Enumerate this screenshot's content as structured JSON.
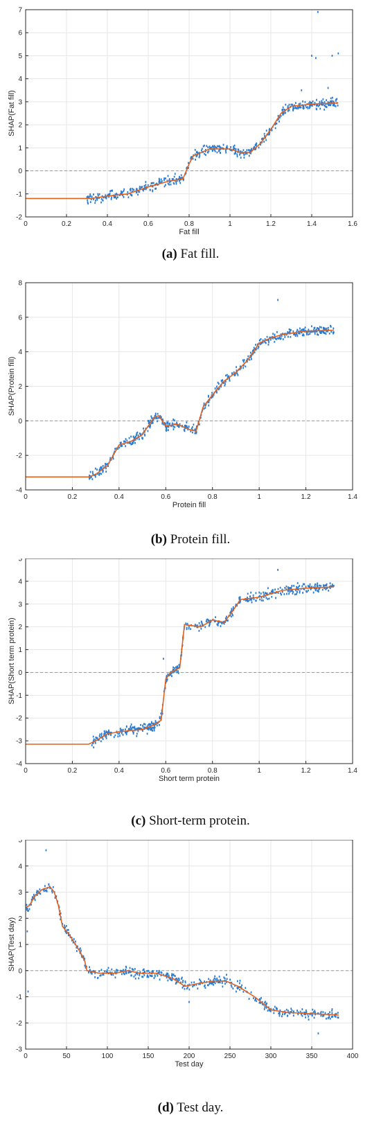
{
  "colors": {
    "scatter": "#2a7bd0",
    "line": "#e0601c",
    "grid": "#e6e6e6",
    "zero_line": "#9a9a9a",
    "axis": "#262626"
  },
  "chart_data": [
    {
      "type": "scatter",
      "caption_letter": "(a)",
      "caption_text": " Fat fill.",
      "xlabel": "Fat fill",
      "ylabel": "SHAP(Fat fill)",
      "xlim": [
        0,
        1.6
      ],
      "ylim": [
        -2,
        7
      ],
      "xticks": [
        0,
        0.2,
        0.4,
        0.6,
        0.8,
        1,
        1.2,
        1.4,
        1.6
      ],
      "yticks": [
        -2,
        -1,
        0,
        1,
        2,
        3,
        4,
        5,
        6,
        7
      ],
      "grid": true,
      "zero_line": 0,
      "scatter_range": [
        0.3,
        1.53
      ],
      "trend": [
        [
          0,
          -1.2
        ],
        [
          0.32,
          -1.2
        ],
        [
          0.4,
          -1.1
        ],
        [
          0.5,
          -1.0
        ],
        [
          0.6,
          -0.7
        ],
        [
          0.7,
          -0.45
        ],
        [
          0.77,
          -0.35
        ],
        [
          0.8,
          0.3
        ],
        [
          0.82,
          0.65
        ],
        [
          0.9,
          0.95
        ],
        [
          1.0,
          0.95
        ],
        [
          1.05,
          0.8
        ],
        [
          1.1,
          0.8
        ],
        [
          1.15,
          1.2
        ],
        [
          1.2,
          1.8
        ],
        [
          1.25,
          2.5
        ],
        [
          1.3,
          2.8
        ],
        [
          1.4,
          2.9
        ],
        [
          1.53,
          2.95
        ]
      ],
      "outliers": [
        [
          1.43,
          6.9
        ],
        [
          1.4,
          5.0
        ],
        [
          1.42,
          4.9
        ],
        [
          1.5,
          5.0
        ],
        [
          1.53,
          5.1
        ],
        [
          1.48,
          3.6
        ],
        [
          1.35,
          3.5
        ]
      ]
    },
    {
      "type": "scatter",
      "caption_letter": "(b)",
      "caption_text": " Protein fill.",
      "xlabel": "Protein fill",
      "ylabel": "SHAP(Protein fill)",
      "xlim": [
        0,
        1.4
      ],
      "ylim": [
        -4,
        8
      ],
      "xticks": [
        0,
        0.2,
        0.4,
        0.6,
        0.8,
        1,
        1.2,
        1.4
      ],
      "yticks": [
        -4,
        -2,
        0,
        2,
        4,
        6,
        8
      ],
      "grid": true,
      "zero_line": 0,
      "scatter_range": [
        0.27,
        1.32
      ],
      "trend": [
        [
          0,
          -3.25
        ],
        [
          0.27,
          -3.25
        ],
        [
          0.3,
          -3.1
        ],
        [
          0.35,
          -2.6
        ],
        [
          0.4,
          -1.4
        ],
        [
          0.45,
          -1.2
        ],
        [
          0.5,
          -0.8
        ],
        [
          0.55,
          0.2
        ],
        [
          0.57,
          0.3
        ],
        [
          0.6,
          -0.3
        ],
        [
          0.65,
          -0.2
        ],
        [
          0.7,
          -0.5
        ],
        [
          0.73,
          -0.6
        ],
        [
          0.76,
          0.8
        ],
        [
          0.8,
          1.5
        ],
        [
          0.85,
          2.3
        ],
        [
          0.9,
          2.8
        ],
        [
          0.95,
          3.5
        ],
        [
          1.0,
          4.5
        ],
        [
          1.05,
          4.8
        ],
        [
          1.1,
          5.0
        ],
        [
          1.2,
          5.2
        ],
        [
          1.32,
          5.25
        ]
      ],
      "outliers": [
        [
          1.08,
          7.0
        ]
      ]
    },
    {
      "type": "scatter",
      "caption_letter": "(c)",
      "caption_text": " Short-term protein.",
      "xlabel": "Short term protein",
      "ylabel": "SHAP(Short term protein)",
      "xlim": [
        0,
        1.4
      ],
      "ylim": [
        -4,
        5
      ],
      "xticks": [
        0,
        0.2,
        0.4,
        0.6,
        0.8,
        1,
        1.2,
        1.4
      ],
      "yticks": [
        -4,
        -3,
        -2,
        -1,
        0,
        1,
        2,
        3,
        4,
        5
      ],
      "grid": true,
      "zero_line": 0,
      "scatter_range": [
        0.28,
        1.32
      ],
      "trend": [
        [
          0,
          -3.15
        ],
        [
          0.27,
          -3.15
        ],
        [
          0.3,
          -3.0
        ],
        [
          0.35,
          -2.7
        ],
        [
          0.4,
          -2.6
        ],
        [
          0.5,
          -2.5
        ],
        [
          0.55,
          -2.3
        ],
        [
          0.58,
          -2.1
        ],
        [
          0.6,
          -0.3
        ],
        [
          0.62,
          0.0
        ],
        [
          0.66,
          0.2
        ],
        [
          0.68,
          2.1
        ],
        [
          0.75,
          2.0
        ],
        [
          0.8,
          2.3
        ],
        [
          0.85,
          2.2
        ],
        [
          0.88,
          2.6
        ],
        [
          0.92,
          3.2
        ],
        [
          1.0,
          3.3
        ],
        [
          1.1,
          3.6
        ],
        [
          1.2,
          3.7
        ],
        [
          1.32,
          3.75
        ]
      ],
      "outliers": [
        [
          1.08,
          4.5
        ],
        [
          0.59,
          0.6
        ]
      ]
    },
    {
      "type": "scatter",
      "caption_letter": "(d)",
      "caption_text": " Test day.",
      "xlabel": "Test day",
      "ylabel": "SHAP(Test day)",
      "xlim": [
        0,
        400
      ],
      "ylim": [
        -3,
        5
      ],
      "xticks": [
        0,
        50,
        100,
        150,
        200,
        250,
        300,
        350,
        400
      ],
      "yticks": [
        -3,
        -2,
        -1,
        0,
        1,
        2,
        3,
        4,
        5
      ],
      "grid": true,
      "zero_line": 0,
      "scatter_range": [
        1,
        383
      ],
      "trend": [
        [
          0,
          2.4
        ],
        [
          5,
          2.5
        ],
        [
          10,
          2.8
        ],
        [
          20,
          3.1
        ],
        [
          30,
          3.2
        ],
        [
          35,
          3.0
        ],
        [
          40,
          2.5
        ],
        [
          45,
          1.7
        ],
        [
          55,
          1.3
        ],
        [
          65,
          0.8
        ],
        [
          72,
          0.4
        ],
        [
          75,
          0.0
        ],
        [
          90,
          -0.1
        ],
        [
          110,
          -0.1
        ],
        [
          125,
          0.0
        ],
        [
          140,
          -0.1
        ],
        [
          160,
          -0.1
        ],
        [
          180,
          -0.3
        ],
        [
          195,
          -0.6
        ],
        [
          210,
          -0.5
        ],
        [
          230,
          -0.4
        ],
        [
          245,
          -0.4
        ],
        [
          260,
          -0.6
        ],
        [
          280,
          -1.0
        ],
        [
          300,
          -1.5
        ],
        [
          320,
          -1.6
        ],
        [
          350,
          -1.65
        ],
        [
          383,
          -1.7
        ]
      ],
      "outliers": [
        [
          25,
          4.6
        ],
        [
          2,
          1.5
        ],
        [
          3,
          -0.8
        ],
        [
          200,
          -1.2
        ],
        [
          358,
          -2.4
        ]
      ]
    }
  ]
}
